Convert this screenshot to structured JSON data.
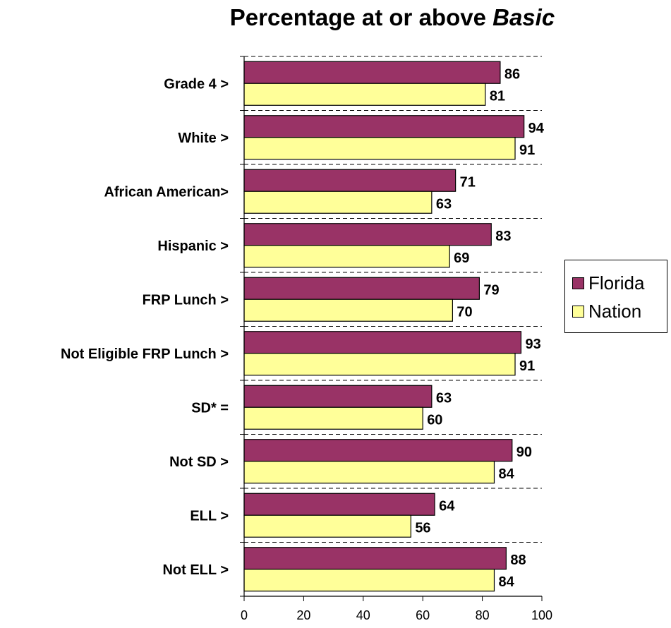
{
  "chart_data": {
    "type": "bar",
    "orientation": "horizontal",
    "title_main": "Percentage at or above ",
    "title_emph": "Basic",
    "categories": [
      "Grade 4 >",
      "White >",
      "African American>",
      "Hispanic >",
      "FRP Lunch >",
      "Not Eligible FRP Lunch >",
      "SD* =",
      "Not SD >",
      "ELL >",
      "Not ELL >"
    ],
    "series": [
      {
        "name": "Florida",
        "color": "#993366",
        "values": [
          86,
          94,
          71,
          83,
          79,
          93,
          63,
          90,
          64,
          88
        ]
      },
      {
        "name": "Nation",
        "color": "#FFFF99",
        "values": [
          81,
          91,
          63,
          69,
          70,
          91,
          60,
          84,
          56,
          84
        ]
      }
    ],
    "xlim": [
      0,
      100
    ],
    "xticks": [
      0,
      20,
      40,
      60,
      80,
      100
    ],
    "gridlines": "dashed-between-categories",
    "legend_position": "right"
  },
  "legend": {
    "florida_label": "Florida",
    "nation_label": "Nation"
  }
}
